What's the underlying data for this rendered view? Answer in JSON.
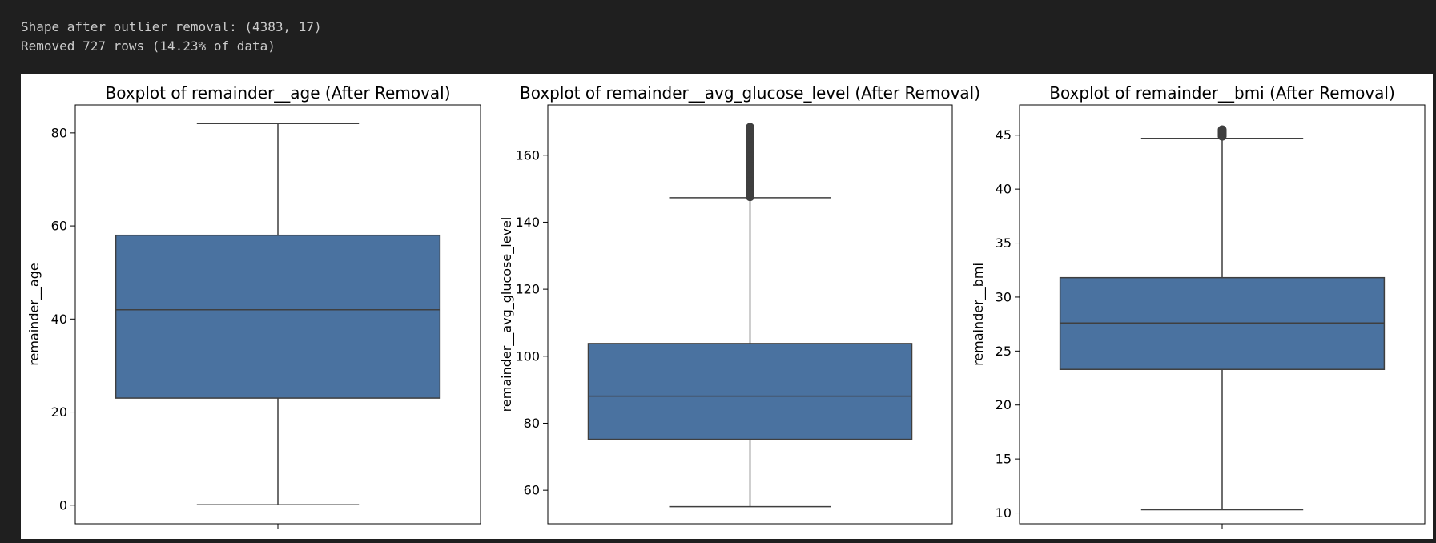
{
  "console": {
    "line1": "Shape after outlier removal: (4383, 17)",
    "line2": "Removed 727 rows (14.23% of data)"
  },
  "chart_data": [
    {
      "type": "box",
      "title": "Boxplot of remainder__age (After Removal)",
      "ylabel": "remainder__age",
      "ylim": [
        -4,
        86
      ],
      "yticks": [
        0,
        20,
        40,
        60,
        80
      ],
      "color": "#4a72a0",
      "box": {
        "whisker_low": 0.08,
        "q1": 23,
        "median": 42,
        "q3": 58,
        "whisker_high": 82
      },
      "outliers": []
    },
    {
      "type": "box",
      "title": "Boxplot of remainder__avg_glucose_level (After Removal)",
      "ylabel": "remainder__avg_glucose_level",
      "ylim": [
        50,
        175
      ],
      "yticks": [
        60,
        80,
        100,
        120,
        140,
        160
      ],
      "color": "#4a72a0",
      "box": {
        "whisker_low": 55.1,
        "q1": 75.2,
        "median": 88.1,
        "q3": 103.8,
        "whisker_high": 147.3
      },
      "outliers": [
        147.6,
        148.5,
        149.5,
        150.6,
        151.8,
        153.0,
        154.5,
        156.0,
        157.5,
        159.0,
        160.5,
        162.0,
        163.5,
        165.0,
        166.3,
        167.5,
        168.3
      ]
    },
    {
      "type": "box",
      "title": "Boxplot of remainder__bmi (After Removal)",
      "ylabel": "remainder__bmi",
      "ylim": [
        9,
        47.8
      ],
      "yticks": [
        10,
        15,
        20,
        25,
        30,
        35,
        40,
        45
      ],
      "color": "#4a72a0",
      "box": {
        "whisker_low": 10.3,
        "q1": 23.3,
        "median": 27.6,
        "q3": 31.8,
        "whisker_high": 44.7
      },
      "outliers": [
        44.9,
        45.0,
        45.1,
        45.2,
        45.3,
        45.4,
        45.5
      ]
    }
  ]
}
